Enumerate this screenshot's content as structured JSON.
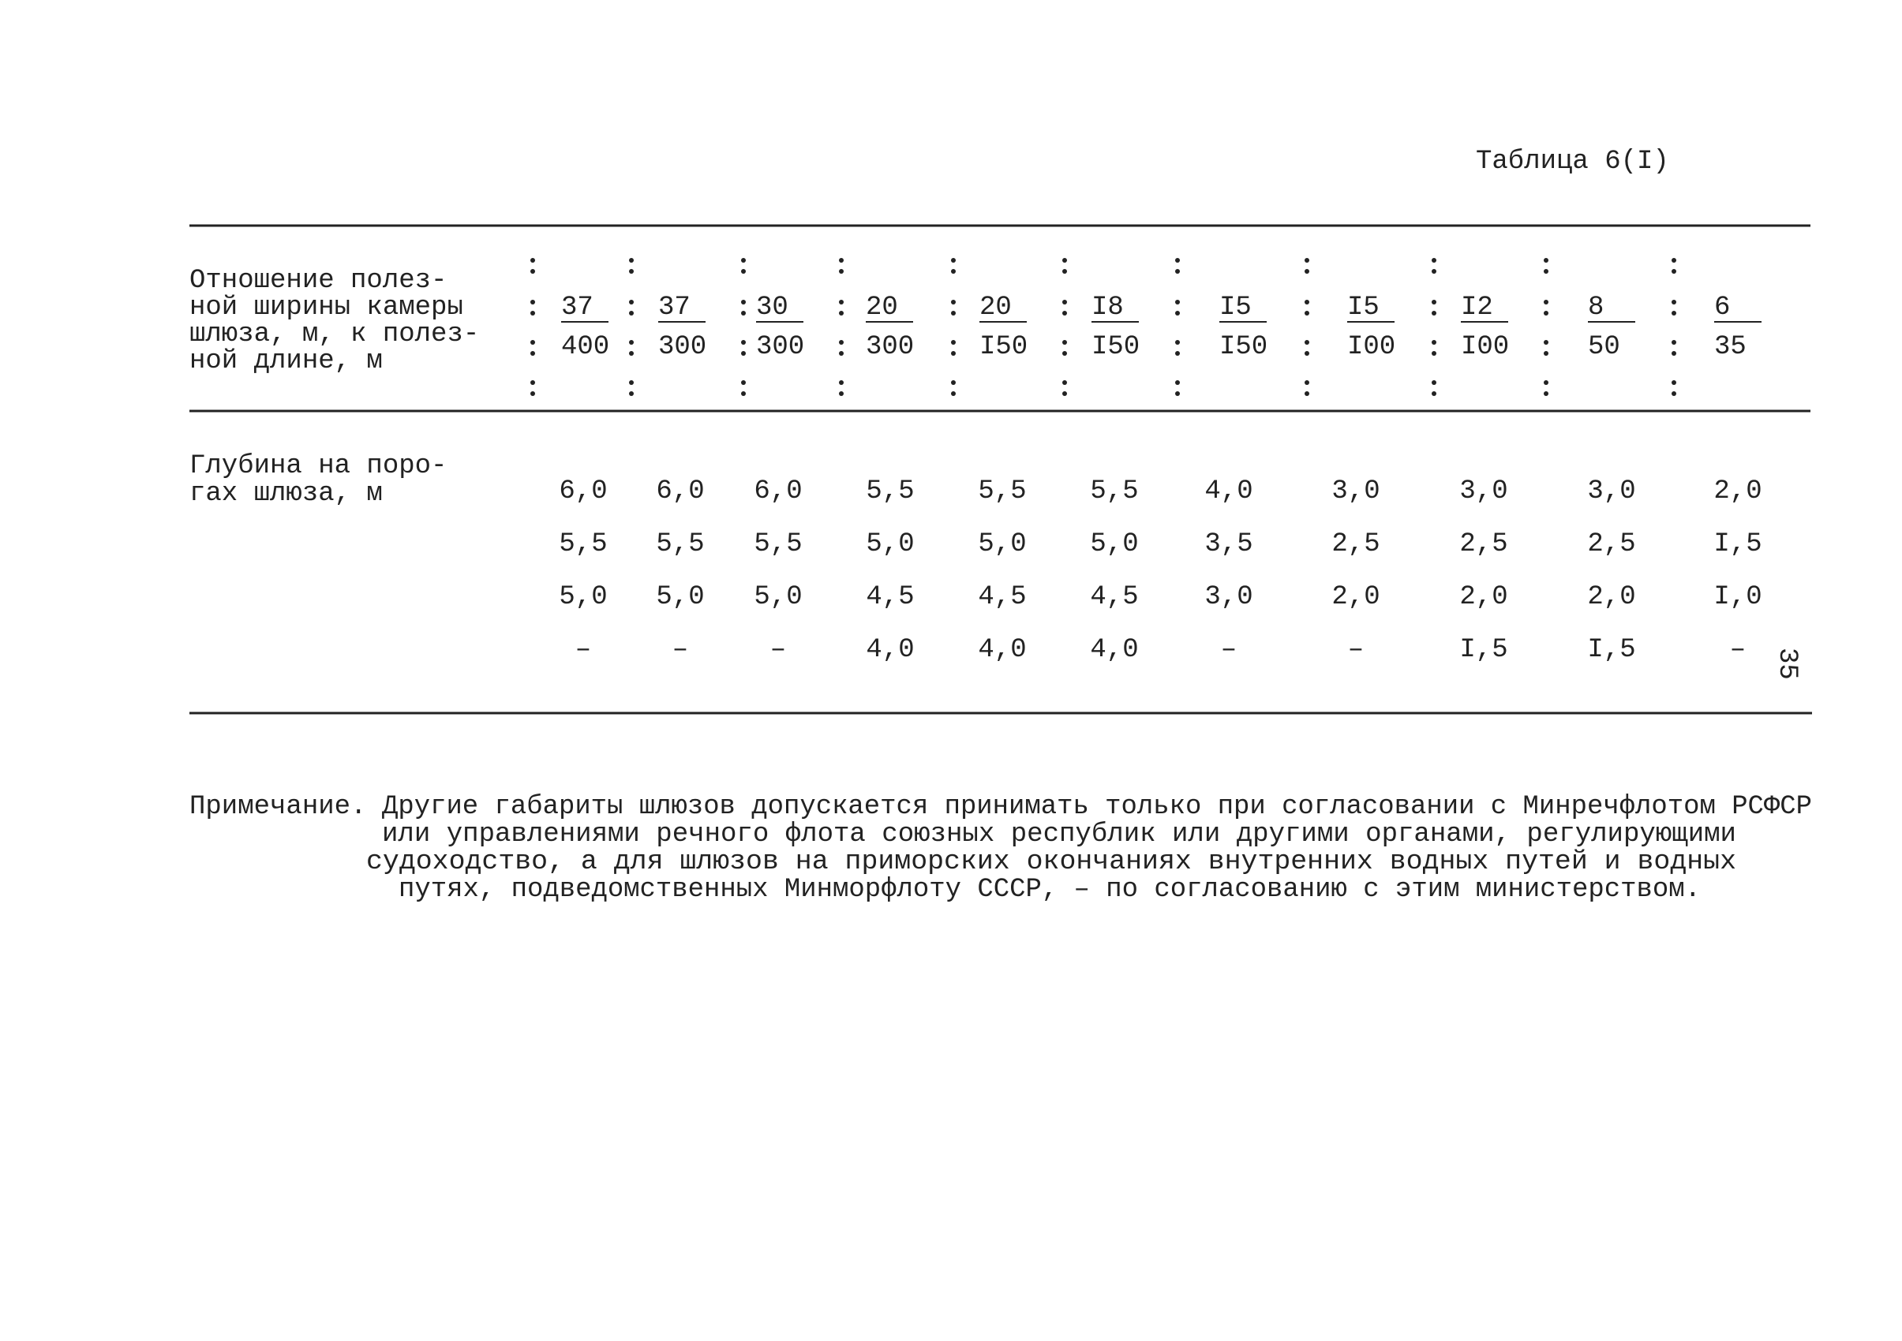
{
  "header": {
    "table_title": "Таблица 6(I)"
  },
  "table": {
    "header_label": [
      "Отношение полез-",
      "ной ширины камеры",
      "шлюза, м, к полез-",
      "ной длине, м"
    ],
    "columns": [
      {
        "numerator": "37",
        "denominator": "400"
      },
      {
        "numerator": "37",
        "denominator": "300"
      },
      {
        "numerator": "30",
        "denominator": "300"
      },
      {
        "numerator": "20",
        "denominator": "300"
      },
      {
        "numerator": "20",
        "denominator": "I50"
      },
      {
        "numerator": "I8",
        "denominator": "I50"
      },
      {
        "numerator": "I5",
        "denominator": "I50"
      },
      {
        "numerator": "I5",
        "denominator": "I00"
      },
      {
        "numerator": "I2",
        "denominator": "I00"
      },
      {
        "numerator": "8",
        "denominator": "50"
      },
      {
        "numerator": "6",
        "denominator": "35"
      }
    ],
    "row_label": [
      "Глубина на поро-",
      "гах шлюза, м"
    ],
    "rows": [
      [
        "6,0",
        "6,0",
        "6,0",
        "5,5",
        "5,5",
        "5,5",
        "4,0",
        "3,0",
        "3,0",
        "3,0",
        "2,0"
      ],
      [
        "5,5",
        "5,5",
        "5,5",
        "5,0",
        "5,0",
        "5,0",
        "3,5",
        "2,5",
        "2,5",
        "2,5",
        "I,5"
      ],
      [
        "5,0",
        "5,0",
        "5,0",
        "4,5",
        "4,5",
        "4,5",
        "3,0",
        "2,0",
        "2,0",
        "2,0",
        "I,0"
      ],
      [
        "–",
        "–",
        "–",
        "4,0",
        "4,0",
        "4,0",
        "–",
        "–",
        "I,5",
        "I,5",
        "–"
      ]
    ]
  },
  "page_number": "35",
  "note": {
    "label": "Примечание.",
    "lines": [
      "Другие габариты шлюзов допускается принимать только при согласовании с Минречфлотом РСФСР",
      "или управлениями речного флота союзных республик или другими органами, регулирующими",
      "судоходство, а для шлюзов на приморских окончаниях  внутренних водных путей и водных",
      "путях, подведомственных Минморфлоту СССР, – по согласованию с этим министерством."
    ]
  }
}
